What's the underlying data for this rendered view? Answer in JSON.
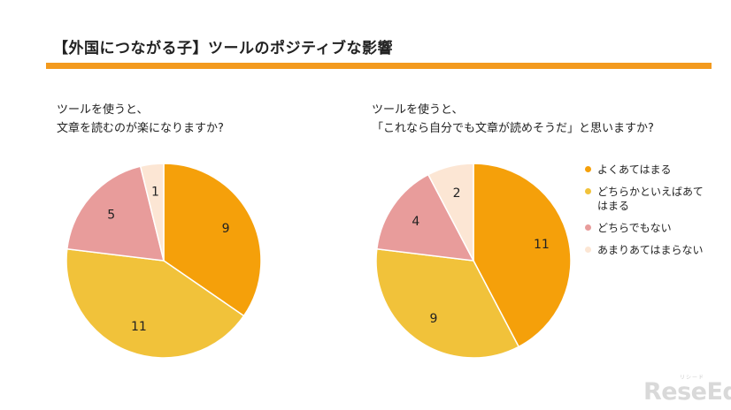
{
  "page": {
    "title": "【外国につながる子】ツールのポジティブな影響",
    "accent_color": "#F39A1E"
  },
  "charts": [
    {
      "question_lines": [
        "ツールを使うと、",
        "文章を読むのが楽になりますか?"
      ]
    },
    {
      "question_lines": [
        "ツールを使うと、",
        "「これなら自分でも文章が読めそうだ」と思いますか?"
      ]
    }
  ],
  "legend": [
    {
      "label": "よくあてはまる",
      "color": "#F5A00A"
    },
    {
      "label": "どちらかといえばあて\nはまる",
      "color": "#F1C23A"
    },
    {
      "label": "どちらでもない",
      "color": "#E89C9B"
    },
    {
      "label": "あまりあてはまらない",
      "color": "#FCE6D4"
    }
  ],
  "chart_data": [
    {
      "type": "pie",
      "categories": [
        "よくあてはまる",
        "どちらかといえばあてはまる",
        "どちらでもない",
        "あまりあてはまらない"
      ],
      "values": [
        9,
        11,
        5,
        1
      ],
      "colors": [
        "#F5A00A",
        "#F1C23A",
        "#E89C9B",
        "#FCE6D4"
      ],
      "start": "12 o'clock",
      "direction": "clockwise",
      "legend_position": "right"
    },
    {
      "type": "pie",
      "categories": [
        "よくあてはまる",
        "どちらかといえばあてはまる",
        "どちらでもない",
        "あまりあてはまらない"
      ],
      "values": [
        11,
        9,
        4,
        2
      ],
      "colors": [
        "#F5A00A",
        "#F1C23A",
        "#E89C9B",
        "#FCE6D4"
      ],
      "start": "12 o'clock",
      "direction": "clockwise",
      "legend_position": "right"
    }
  ],
  "watermark": {
    "text": "ReseEd",
    "ruby": "リシード"
  }
}
